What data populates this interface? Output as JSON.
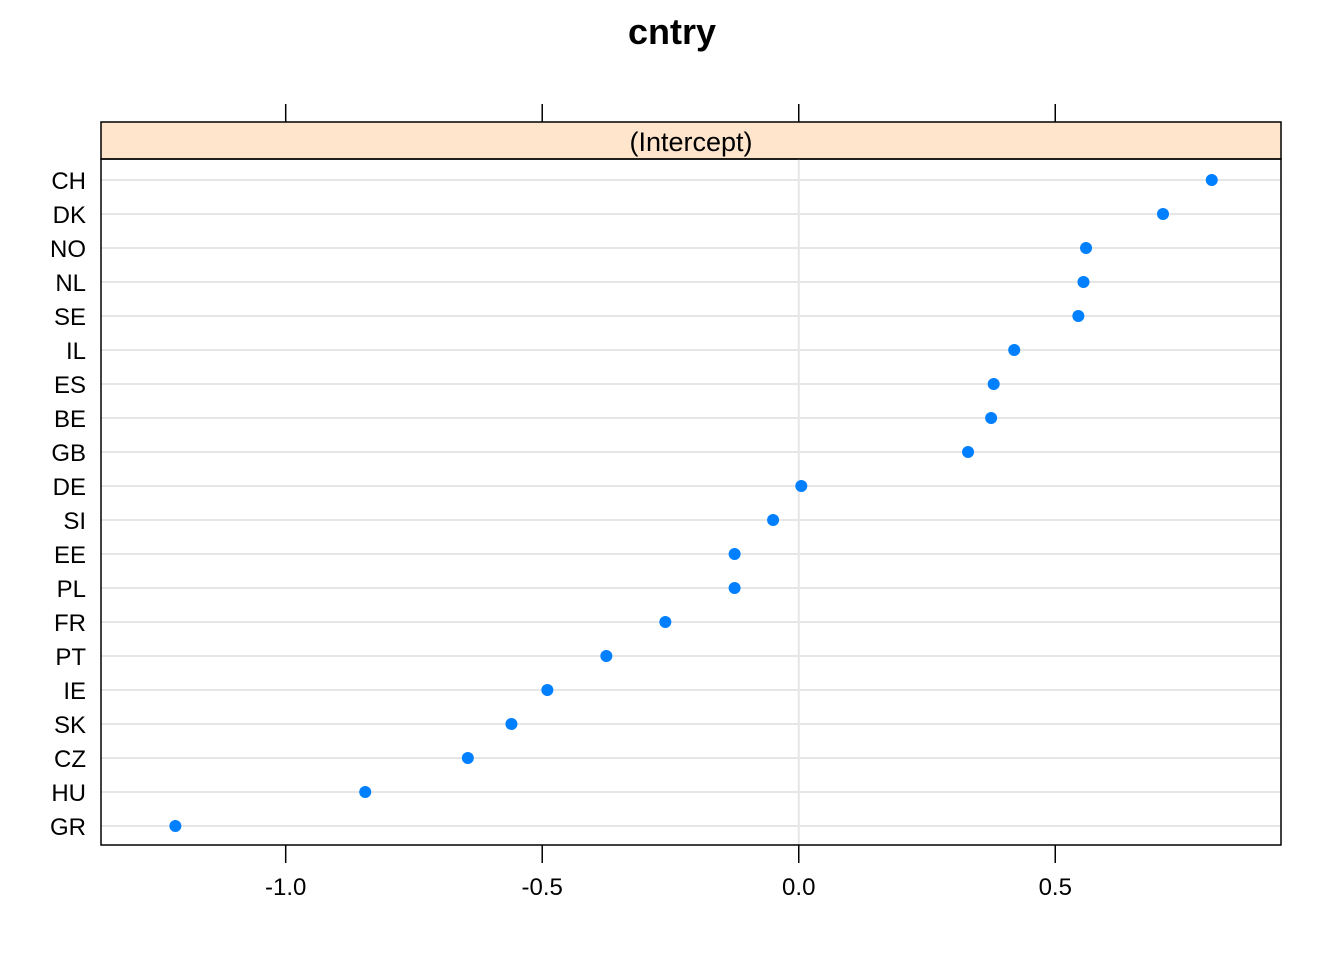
{
  "chart_data": {
    "type": "scatter",
    "title": "cntry",
    "panel_label": "(Intercept)",
    "categories": [
      "CH",
      "DK",
      "NO",
      "NL",
      "SE",
      "IL",
      "ES",
      "BE",
      "GB",
      "DE",
      "SI",
      "EE",
      "PL",
      "FR",
      "PT",
      "IE",
      "SK",
      "CZ",
      "HU",
      "GR"
    ],
    "values": [
      0.805,
      0.71,
      0.56,
      0.555,
      0.545,
      0.42,
      0.38,
      0.375,
      0.33,
      0.005,
      -0.05,
      -0.125,
      -0.125,
      -0.26,
      -0.375,
      -0.49,
      -0.56,
      -0.645,
      -0.845,
      -1.215
    ],
    "x_ticks": [
      -1.0,
      -0.5,
      0.0,
      0.5
    ],
    "x_tick_labels": [
      "-1.0",
      "-0.5",
      "0.0",
      "0.5"
    ],
    "xlim": [
      -1.36,
      0.94
    ],
    "reference_line": 0.0,
    "grid": true,
    "colors": {
      "point": "#0080ff",
      "strip": "#ffe5cc",
      "grid": "#e6e6e6",
      "frame": "#000000"
    }
  }
}
